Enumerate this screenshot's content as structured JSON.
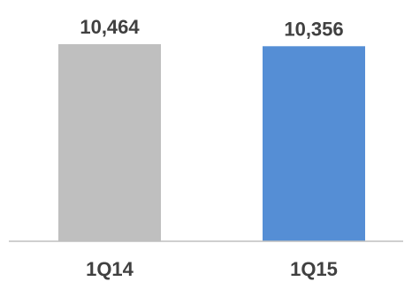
{
  "chart_data": {
    "type": "bar",
    "categories": [
      "1Q14",
      "1Q15"
    ],
    "values": [
      10464,
      10356
    ],
    "value_labels": [
      "10,464",
      "10,356"
    ],
    "bar_colors": [
      "#bfbfbf",
      "#558ed5"
    ],
    "axis_color": "#bfbfbf",
    "label_color": "#404040",
    "title": "",
    "xlabel": "",
    "ylabel": "",
    "grid": false,
    "legend": "none"
  }
}
